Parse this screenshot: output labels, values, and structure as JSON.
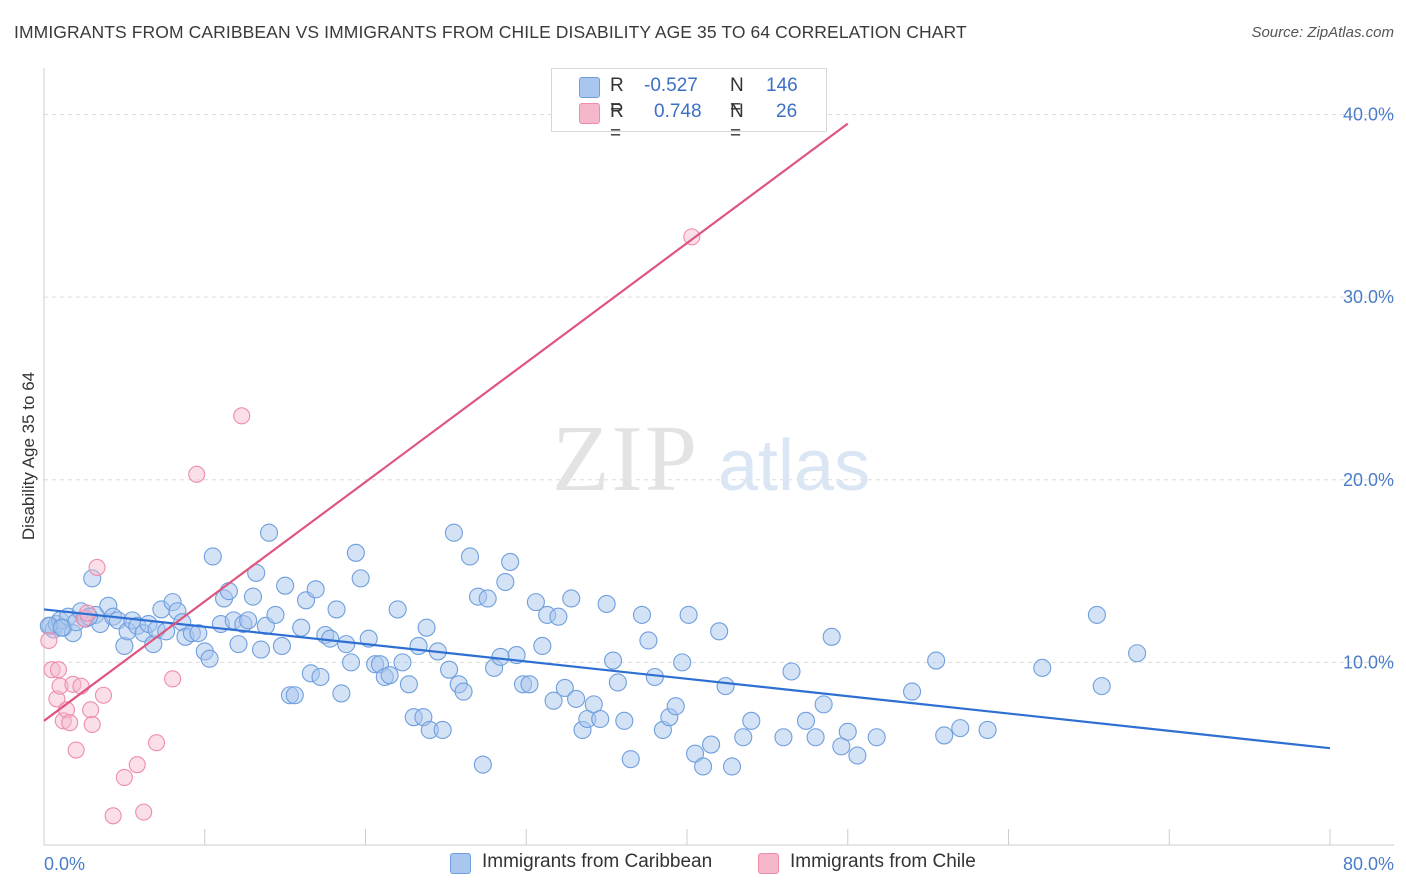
{
  "title": "IMMIGRANTS FROM CARIBBEAN VS IMMIGRANTS FROM CHILE DISABILITY AGE 35 TO 64 CORRELATION CHART",
  "source": "Source: ZipAtlas.com",
  "watermark": {
    "zip": "ZIP",
    "atlas": "atlas"
  },
  "legend": {
    "rows": [
      {
        "r_label": "R =",
        "r_value": "-0.527",
        "n_label": "N =",
        "n_value": "146"
      },
      {
        "r_label": "R =",
        "r_value": "0.748",
        "n_label": "N =",
        "n_value": "26"
      }
    ]
  },
  "bottom_legend": {
    "caribbean": "Immigrants from Caribbean",
    "chile": "Immigrants from Chile"
  },
  "chart_data": {
    "type": "scatter",
    "xlabel": "",
    "ylabel": "Disability Age 35 to 64",
    "xlim": [
      0,
      80
    ],
    "ylim": [
      0,
      42
    ],
    "x_tick_labels": [
      "0.0%",
      "80.0%"
    ],
    "y_ticks": [
      10,
      20,
      30,
      40
    ],
    "y_tick_labels": [
      "10.0%",
      "20.0%",
      "30.0%",
      "40.0%"
    ],
    "grid": true,
    "colors": {
      "caribbean": "#a9c6ee",
      "caribbean_edge": "#6f9fde",
      "caribbean_line": "#2d6fd2",
      "chile": "#f5b8cb",
      "chile_edge": "#ee8daa",
      "chile_line": "#e0557f"
    },
    "series": [
      {
        "name": "Immigrants from Caribbean",
        "trend": {
          "x": [
            0,
            80
          ],
          "y": [
            12.9,
            5.3
          ]
        },
        "points": [
          [
            0.4,
            12.0
          ],
          [
            0.6,
            11.8
          ],
          [
            0.8,
            12.1
          ],
          [
            1.0,
            12.3
          ],
          [
            1.2,
            11.9
          ],
          [
            1.5,
            12.5
          ],
          [
            1.8,
            11.6
          ],
          [
            2.0,
            12.2
          ],
          [
            2.3,
            12.8
          ],
          [
            2.6,
            12.4
          ],
          [
            3.0,
            14.6
          ],
          [
            3.2,
            12.6
          ],
          [
            3.5,
            12.1
          ],
          [
            4.0,
            13.1
          ],
          [
            4.3,
            12.5
          ],
          [
            4.6,
            12.3
          ],
          [
            5.0,
            10.9
          ],
          [
            5.2,
            11.7
          ],
          [
            5.5,
            12.3
          ],
          [
            5.8,
            12.0
          ],
          [
            6.2,
            11.6
          ],
          [
            6.5,
            12.1
          ],
          [
            6.8,
            11.0
          ],
          [
            7.0,
            11.8
          ],
          [
            7.3,
            12.9
          ],
          [
            7.6,
            11.7
          ],
          [
            8.0,
            13.3
          ],
          [
            8.3,
            12.8
          ],
          [
            8.6,
            12.2
          ],
          [
            8.8,
            11.4
          ],
          [
            9.2,
            11.6
          ],
          [
            9.6,
            11.6
          ],
          [
            10.0,
            10.6
          ],
          [
            10.3,
            10.2
          ],
          [
            10.5,
            15.8
          ],
          [
            11.0,
            12.1
          ],
          [
            11.2,
            13.5
          ],
          [
            11.5,
            13.9
          ],
          [
            11.8,
            12.3
          ],
          [
            12.1,
            11.0
          ],
          [
            12.4,
            12.1
          ],
          [
            12.7,
            12.3
          ],
          [
            13.0,
            13.6
          ],
          [
            13.2,
            14.9
          ],
          [
            13.5,
            10.7
          ],
          [
            13.8,
            12.0
          ],
          [
            14.0,
            17.1
          ],
          [
            14.4,
            12.6
          ],
          [
            14.8,
            10.9
          ],
          [
            15.0,
            14.2
          ],
          [
            15.3,
            8.2
          ],
          [
            15.6,
            8.2
          ],
          [
            16.0,
            11.9
          ],
          [
            16.3,
            13.4
          ],
          [
            16.6,
            9.4
          ],
          [
            16.9,
            14.0
          ],
          [
            17.2,
            9.2
          ],
          [
            17.5,
            11.5
          ],
          [
            17.8,
            11.3
          ],
          [
            18.2,
            12.9
          ],
          [
            18.5,
            8.3
          ],
          [
            18.8,
            11.0
          ],
          [
            19.1,
            10.0
          ],
          [
            19.4,
            16.0
          ],
          [
            19.7,
            14.6
          ],
          [
            20.2,
            11.3
          ],
          [
            20.6,
            9.9
          ],
          [
            20.9,
            9.9
          ],
          [
            21.2,
            9.2
          ],
          [
            21.5,
            9.3
          ],
          [
            22.0,
            12.9
          ],
          [
            22.3,
            10.0
          ],
          [
            22.7,
            8.8
          ],
          [
            23.0,
            7.0
          ],
          [
            23.3,
            10.9
          ],
          [
            23.6,
            7.0
          ],
          [
            23.8,
            11.9
          ],
          [
            24.0,
            6.3
          ],
          [
            24.5,
            10.6
          ],
          [
            24.8,
            6.3
          ],
          [
            25.2,
            9.6
          ],
          [
            25.5,
            17.1
          ],
          [
            25.8,
            8.8
          ],
          [
            26.1,
            8.4
          ],
          [
            26.5,
            15.8
          ],
          [
            27.0,
            13.6
          ],
          [
            27.3,
            4.4
          ],
          [
            27.6,
            13.5
          ],
          [
            28.0,
            9.7
          ],
          [
            28.4,
            10.3
          ],
          [
            28.7,
            14.4
          ],
          [
            29.0,
            15.5
          ],
          [
            29.4,
            10.4
          ],
          [
            29.8,
            8.8
          ],
          [
            30.2,
            8.8
          ],
          [
            30.6,
            13.3
          ],
          [
            31.0,
            10.9
          ],
          [
            31.3,
            12.6
          ],
          [
            31.7,
            7.9
          ],
          [
            32.0,
            12.5
          ],
          [
            32.4,
            8.6
          ],
          [
            32.8,
            13.5
          ],
          [
            33.1,
            8.0
          ],
          [
            33.5,
            6.3
          ],
          [
            33.8,
            6.9
          ],
          [
            34.2,
            7.7
          ],
          [
            34.6,
            6.9
          ],
          [
            35.0,
            13.2
          ],
          [
            35.4,
            10.1
          ],
          [
            35.7,
            8.9
          ],
          [
            36.1,
            6.8
          ],
          [
            36.5,
            4.7
          ],
          [
            37.2,
            12.6
          ],
          [
            37.6,
            11.2
          ],
          [
            38.0,
            9.2
          ],
          [
            38.5,
            6.3
          ],
          [
            38.9,
            7.0
          ],
          [
            39.3,
            7.6
          ],
          [
            39.7,
            10.0
          ],
          [
            40.1,
            12.6
          ],
          [
            40.5,
            5.0
          ],
          [
            41.0,
            4.3
          ],
          [
            41.5,
            5.5
          ],
          [
            42.0,
            11.7
          ],
          [
            42.4,
            8.7
          ],
          [
            42.8,
            4.3
          ],
          [
            43.5,
            5.9
          ],
          [
            44.0,
            6.8
          ],
          [
            46.0,
            5.9
          ],
          [
            46.5,
            9.5
          ],
          [
            47.4,
            6.8
          ],
          [
            48.0,
            5.9
          ],
          [
            48.5,
            7.7
          ],
          [
            49.0,
            11.4
          ],
          [
            49.6,
            5.4
          ],
          [
            50.0,
            6.2
          ],
          [
            50.6,
            4.9
          ],
          [
            51.8,
            5.9
          ],
          [
            54.0,
            8.4
          ],
          [
            55.5,
            10.1
          ],
          [
            56.0,
            6.0
          ],
          [
            57.0,
            6.4
          ],
          [
            58.7,
            6.3
          ],
          [
            62.1,
            9.7
          ],
          [
            65.5,
            12.6
          ],
          [
            65.8,
            8.7
          ],
          [
            68.0,
            10.5
          ],
          [
            0.3,
            12.0
          ],
          [
            1.1,
            11.9
          ],
          [
            2.8,
            12.5
          ]
        ]
      },
      {
        "name": "Immigrants from Chile",
        "trend": {
          "x": [
            0,
            50
          ],
          "y": [
            6.8,
            39.5
          ]
        },
        "points": [
          [
            0.3,
            11.2
          ],
          [
            0.5,
            9.6
          ],
          [
            0.8,
            8.0
          ],
          [
            0.9,
            9.6
          ],
          [
            1.0,
            8.7
          ],
          [
            1.2,
            6.8
          ],
          [
            1.4,
            7.4
          ],
          [
            1.6,
            6.7
          ],
          [
            1.8,
            8.8
          ],
          [
            2.0,
            5.2
          ],
          [
            2.3,
            8.7
          ],
          [
            2.5,
            12.4
          ],
          [
            2.7,
            12.7
          ],
          [
            2.9,
            7.4
          ],
          [
            3.0,
            6.6
          ],
          [
            3.3,
            15.2
          ],
          [
            3.7,
            8.2
          ],
          [
            4.3,
            1.6
          ],
          [
            5.0,
            3.7
          ],
          [
            5.8,
            4.4
          ],
          [
            6.2,
            1.8
          ],
          [
            7.0,
            5.6
          ],
          [
            8.0,
            9.1
          ],
          [
            9.5,
            20.3
          ],
          [
            12.3,
            23.5
          ],
          [
            40.3,
            33.3
          ]
        ]
      }
    ]
  }
}
